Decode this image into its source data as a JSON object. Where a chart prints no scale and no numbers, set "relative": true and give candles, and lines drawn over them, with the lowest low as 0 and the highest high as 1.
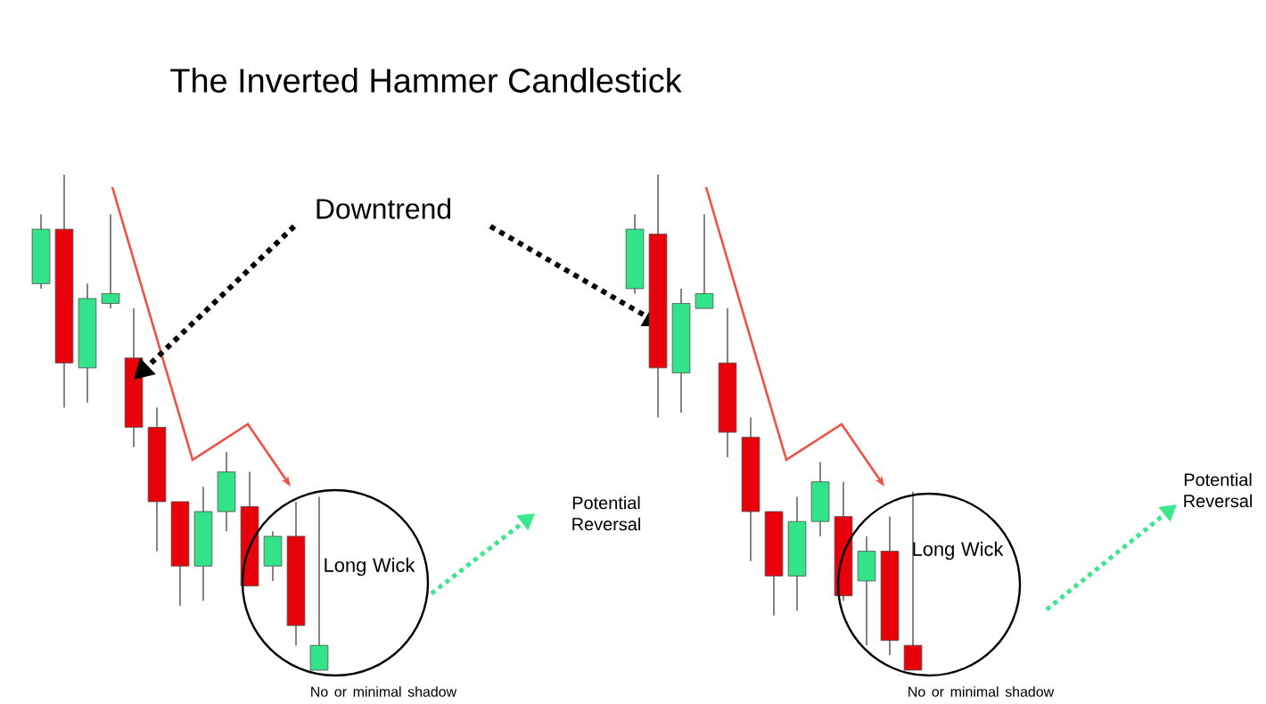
{
  "chart_data": [
    {
      "type": "candlestick",
      "title": "The Inverted Hammer Candlestick",
      "relative": true,
      "categories": [
        null,
        null,
        null,
        null,
        null,
        null,
        null,
        null,
        null,
        null,
        null,
        null,
        null
      ],
      "ohlc": [
        [
          0.78,
          0.92,
          0.77,
          0.89
        ],
        [
          0.89,
          1,
          0.53,
          0.62
        ],
        [
          0.61,
          0.78,
          0.54,
          0.75
        ],
        [
          0.74,
          0.92,
          0.73,
          0.76
        ],
        [
          0.63,
          0.73,
          0.45,
          0.49
        ],
        [
          0.49,
          0.53,
          0.24,
          0.34
        ],
        [
          0.34,
          0.34,
          0.13,
          0.21
        ],
        [
          0.21,
          0.37,
          0.14,
          0.32
        ],
        [
          0.32,
          0.44,
          0.28,
          0.4
        ],
        [
          0.33,
          0.4,
          0.17,
          0.17
        ],
        [
          0.21,
          0.28,
          0.18,
          0.27
        ],
        [
          0.27,
          0.34,
          0.05,
          0.09
        ],
        [
          0,
          0.35,
          0,
          0.05
        ]
      ],
      "colors": [
        "#33e38a",
        "#e8000b",
        "#33e38a",
        "#33e38a",
        "#e8000b",
        "#e8000b",
        "#e8000b",
        "#33e38a",
        "#33e38a",
        "#e8000b",
        "#33e38a",
        "#e8000b",
        "#33e38a"
      ],
      "annotations": [
        "Downtrend",
        "Long Wick",
        "No or minimal shadow",
        "Potential Reversal"
      ]
    },
    {
      "type": "candlestick",
      "relative": true,
      "categories": [
        null,
        null,
        null,
        null,
        null,
        null,
        null,
        null,
        null,
        null,
        null,
        null,
        null
      ],
      "ohlc": [
        [
          0.77,
          0.92,
          0.76,
          0.89
        ],
        [
          0.88,
          1,
          0.51,
          0.61
        ],
        [
          0.6,
          0.77,
          0.52,
          0.74
        ],
        [
          0.73,
          0.92,
          0.73,
          0.76
        ],
        [
          0.62,
          0.73,
          0.43,
          0.48
        ],
        [
          0.47,
          0.51,
          0.22,
          0.32
        ],
        [
          0.32,
          0.32,
          0.11,
          0.19
        ],
        [
          0.19,
          0.35,
          0.12,
          0.3
        ],
        [
          0.3,
          0.42,
          0.27,
          0.38
        ],
        [
          0.31,
          0.38,
          0.14,
          0.15
        ],
        [
          0.18,
          0.27,
          0.05,
          0.24
        ],
        [
          0.24,
          0.31,
          0.03,
          0.06
        ],
        [
          0.05,
          0.36,
          0,
          0
        ]
      ],
      "colors": [
        "#33e38a",
        "#e8000b",
        "#33e38a",
        "#33e38a",
        "#e8000b",
        "#e8000b",
        "#e8000b",
        "#33e38a",
        "#33e38a",
        "#e8000b",
        "#33e38a",
        "#e8000b",
        "#e8000b"
      ],
      "annotations": [
        "Long Wick",
        "No or minimal shadow",
        "Potential Reversal"
      ]
    }
  ]
}
